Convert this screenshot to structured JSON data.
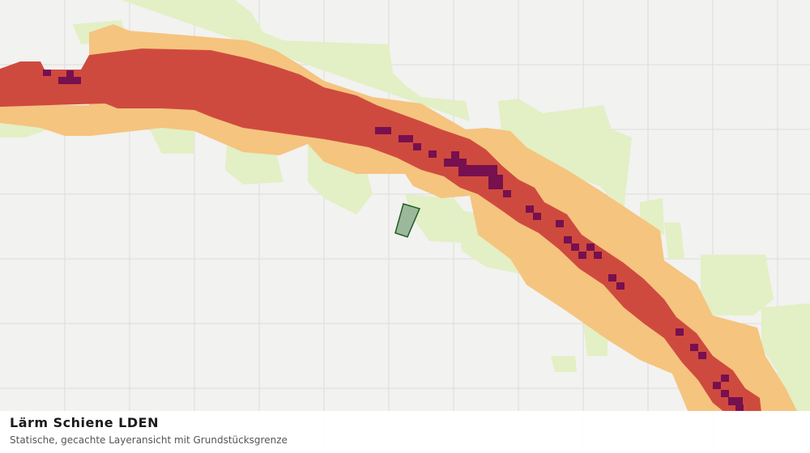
{
  "panel": {
    "title": "Lärm Schiene LDEN",
    "subtitle": "Statische, gecachte Layeransicht mit Grundstücksgrenze"
  }
}
